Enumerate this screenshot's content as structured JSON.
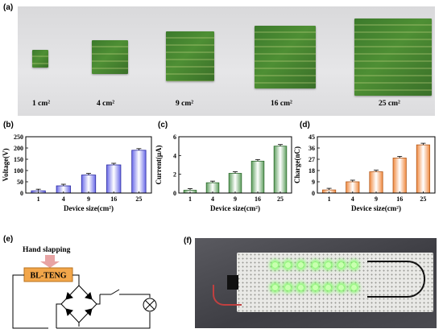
{
  "panels": {
    "a": "(a)",
    "b": "(b)",
    "c": "(c)",
    "d": "(d)",
    "e": "(e)",
    "f": "(f)"
  },
  "panel_a": {
    "sizes": [
      "1 cm²",
      "4 cm²",
      "9 cm²",
      "16 cm²",
      "25 cm²"
    ]
  },
  "colors": {
    "voltage_bar": "#6a6ae8",
    "current_bar": "#5fa05f",
    "charge_bar": "#f08a40",
    "teng_box": "#f2a64a",
    "arrow": "#e8a4a4"
  },
  "chart_data": [
    {
      "type": "bar",
      "categories": [
        "1",
        "4",
        "9",
        "16",
        "25"
      ],
      "values": [
        10,
        32,
        80,
        125,
        190
      ],
      "xlabel": "Device size(cm²)",
      "ylabel": "Voltage(V)",
      "ylim": [
        0,
        250
      ],
      "yticks": [
        0,
        50,
        100,
        150,
        200,
        250
      ],
      "error_bars": true
    },
    {
      "type": "bar",
      "categories": [
        "1",
        "4",
        "9",
        "16",
        "25"
      ],
      "values": [
        0.3,
        1.1,
        2.1,
        3.4,
        5.0
      ],
      "xlabel": "Device size(cm²)",
      "ylabel": "Current(μA)",
      "ylim": [
        0,
        6
      ],
      "yticks": [
        0,
        2,
        4,
        6
      ],
      "error_bars": true
    },
    {
      "type": "bar",
      "categories": [
        "1",
        "4",
        "9",
        "16",
        "25"
      ],
      "values": [
        2.5,
        9,
        17,
        28,
        38.5
      ],
      "xlabel": "Device size(cm²)",
      "ylabel": "Charge(nC)",
      "ylim": [
        0,
        45
      ],
      "yticks": [
        0,
        9,
        18,
        27,
        36,
        45
      ],
      "error_bars": true
    }
  ],
  "panel_e": {
    "hand_label": "Hand slapping",
    "device_label": "BL-TENG"
  }
}
